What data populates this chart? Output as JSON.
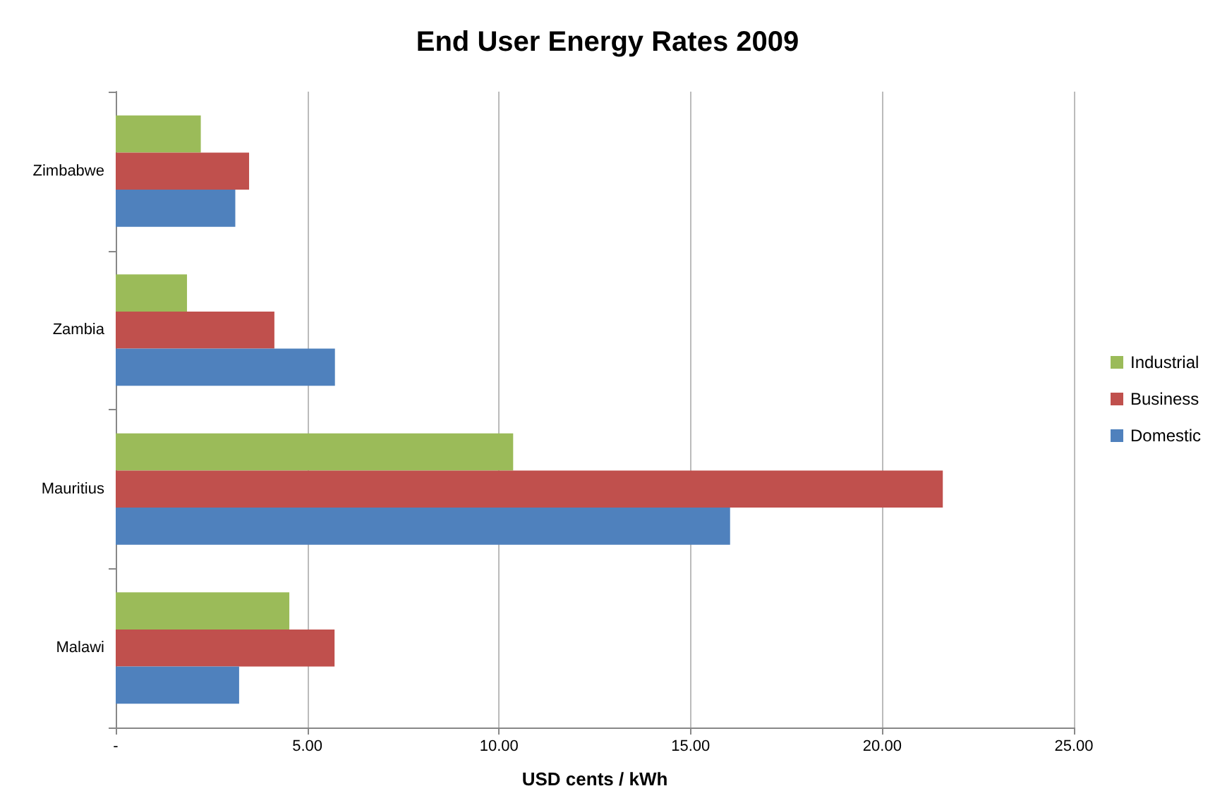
{
  "chart_data": {
    "type": "bar",
    "orientation": "horizontal",
    "title": "End User Energy Rates 2009",
    "xlabel": "USD cents / kWh",
    "categories": [
      "Zimbabwe",
      "Zambia",
      "Mauritius",
      "Malawi"
    ],
    "series": [
      {
        "name": "Industrial",
        "color": "#9bbb59",
        "values": [
          2.22,
          1.86,
          10.37,
          4.53
        ]
      },
      {
        "name": "Business",
        "color": "#c0504d",
        "values": [
          3.48,
          4.14,
          21.58,
          5.71
        ]
      },
      {
        "name": "Domestic",
        "color": "#4f81bd",
        "values": [
          3.12,
          5.72,
          16.03,
          3.22
        ]
      }
    ],
    "xlim": [
      0,
      25
    ],
    "xticks": [
      {
        "value": 0,
        "label": "-"
      },
      {
        "value": 5,
        "label": "5.00"
      },
      {
        "value": 10,
        "label": "10.00"
      },
      {
        "value": 15,
        "label": "15.00"
      },
      {
        "value": 20,
        "label": "20.00"
      },
      {
        "value": 25,
        "label": "25.00"
      }
    ],
    "grid": "x",
    "legend": "right"
  }
}
